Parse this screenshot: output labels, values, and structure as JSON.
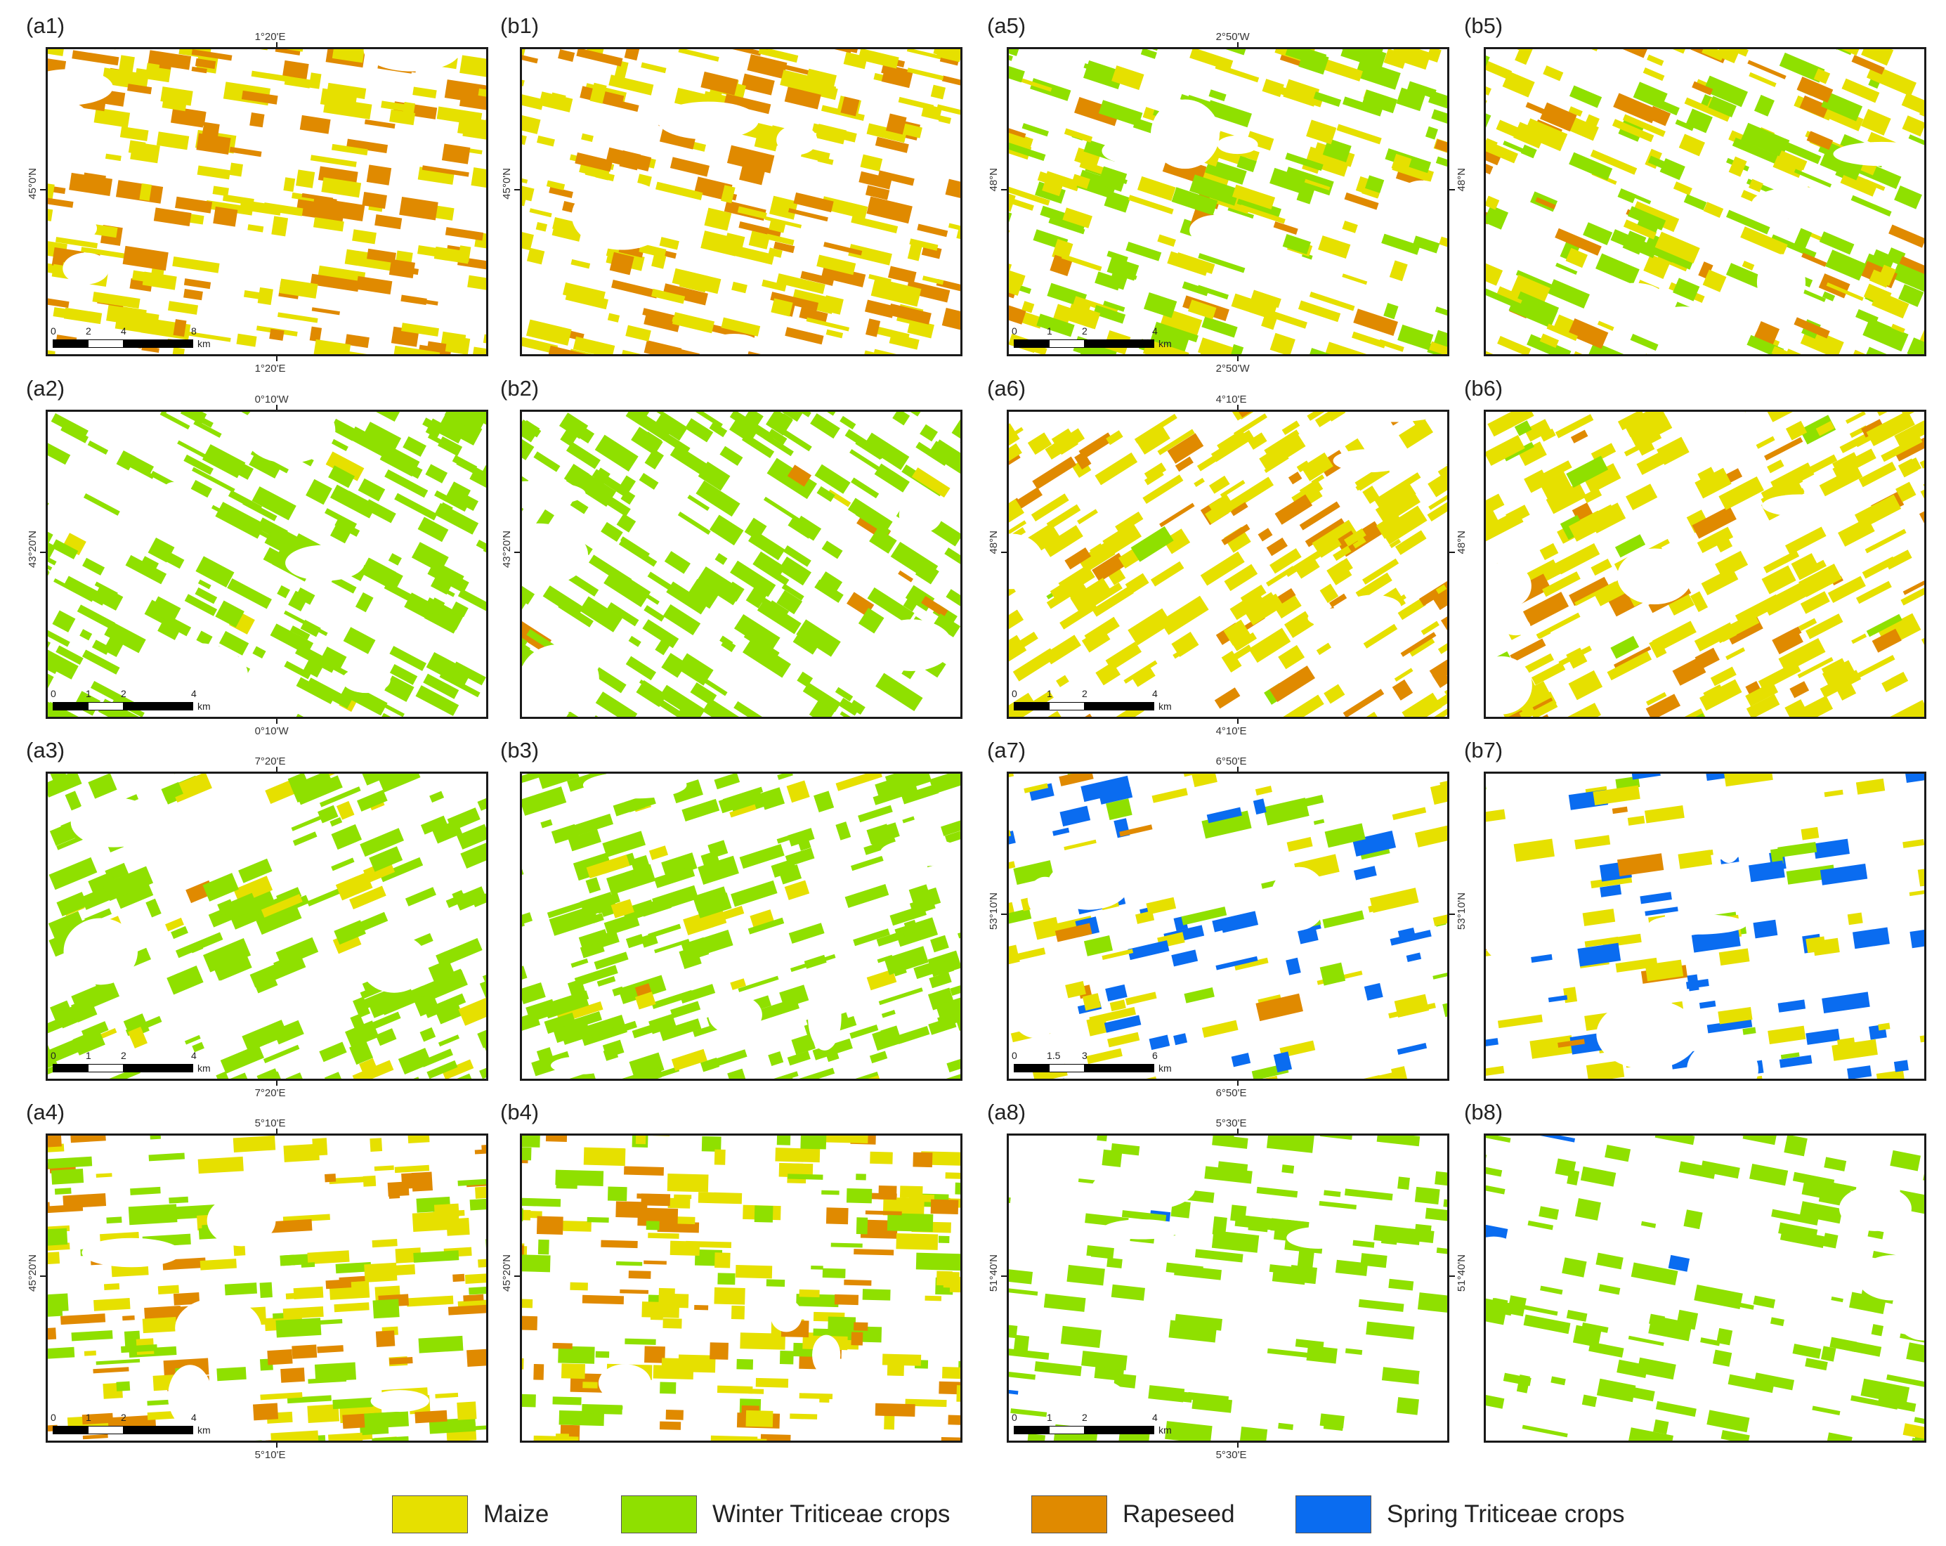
{
  "legend": {
    "items": [
      {
        "label": "Maize",
        "color": "#e6e000"
      },
      {
        "label": "Winter Triticeae crops",
        "color": "#8fe000"
      },
      {
        "label": "Rapeseed",
        "color": "#e08a00"
      },
      {
        "label": "Spring Triticeae crops",
        "color": "#0a6cf0"
      }
    ]
  },
  "panels": [
    {
      "id": "a1",
      "label": "(a1)",
      "top_coord": "1°20'E",
      "bottom_coord": "1°20'E",
      "left_coord": "45°0'N",
      "right_coord": "",
      "palette": [
        0.55,
        0,
        0.45,
        0
      ],
      "density": 0.78,
      "scale_labels": [
        "0",
        "2",
        "4",
        "8"
      ],
      "scale_unit": "km"
    },
    {
      "id": "b1",
      "label": "(b1)",
      "top_coord": "",
      "bottom_coord": "",
      "left_coord": "45°0'N",
      "right_coord": "",
      "palette": [
        0.62,
        0,
        0.38,
        0
      ],
      "density": 0.8
    },
    {
      "id": "a5",
      "label": "(a5)",
      "top_coord": "2°50'W",
      "bottom_coord": "2°50'W",
      "left_coord": "48°N",
      "right_coord": "48°N",
      "palette": [
        0.45,
        0.42,
        0.13,
        0
      ],
      "density": 0.74,
      "scale_labels": [
        "0",
        "1",
        "2",
        "4"
      ],
      "scale_unit": "km"
    },
    {
      "id": "b5",
      "label": "(b5)",
      "top_coord": "",
      "bottom_coord": "",
      "left_coord": "",
      "right_coord": "",
      "palette": [
        0.5,
        0.38,
        0.12,
        0
      ],
      "density": 0.74
    },
    {
      "id": "a2",
      "label": "(a2)",
      "top_coord": "0°10'W",
      "bottom_coord": "0°10'W",
      "left_coord": "43°20'N",
      "right_coord": "",
      "palette": [
        0.03,
        0.97,
        0,
        0
      ],
      "density": 0.68,
      "scale_labels": [
        "0",
        "1",
        "2",
        "4"
      ],
      "scale_unit": "km"
    },
    {
      "id": "b2",
      "label": "(b2)",
      "top_coord": "",
      "bottom_coord": "",
      "left_coord": "43°20'N",
      "right_coord": "",
      "palette": [
        0.02,
        0.96,
        0.02,
        0
      ],
      "density": 0.7
    },
    {
      "id": "a6",
      "label": "(a6)",
      "top_coord": "4°10'E",
      "bottom_coord": "4°10'E",
      "left_coord": "48°N",
      "right_coord": "48°N",
      "palette": [
        0.78,
        0.02,
        0.2,
        0
      ],
      "density": 0.72,
      "scale_labels": [
        "0",
        "1",
        "2",
        "4"
      ],
      "scale_unit": "km"
    },
    {
      "id": "b6",
      "label": "(b6)",
      "top_coord": "",
      "bottom_coord": "",
      "left_coord": "",
      "right_coord": "",
      "palette": [
        0.76,
        0.04,
        0.2,
        0
      ],
      "density": 0.75
    },
    {
      "id": "a3",
      "label": "(a3)",
      "top_coord": "7°20'E",
      "bottom_coord": "7°20'E",
      "left_coord": "",
      "right_coord": "",
      "palette": [
        0.12,
        0.86,
        0.02,
        0
      ],
      "density": 0.66,
      "scale_labels": [
        "0",
        "1",
        "2",
        "4"
      ],
      "scale_unit": "km"
    },
    {
      "id": "b3",
      "label": "(b3)",
      "top_coord": "",
      "bottom_coord": "",
      "left_coord": "",
      "right_coord": "",
      "palette": [
        0.1,
        0.87,
        0.03,
        0
      ],
      "density": 0.68
    },
    {
      "id": "a7",
      "label": "(a7)",
      "top_coord": "6°50'E",
      "bottom_coord": "6°50'E",
      "left_coord": "53°10'N",
      "right_coord": "53°10'N",
      "palette": [
        0.45,
        0.15,
        0.05,
        0.35
      ],
      "density": 0.42,
      "scale_labels": [
        "0",
        "1.5",
        "3",
        "6"
      ],
      "scale_unit": "km"
    },
    {
      "id": "b7",
      "label": "(b7)",
      "top_coord": "",
      "bottom_coord": "",
      "left_coord": "",
      "right_coord": "",
      "palette": [
        0.48,
        0.15,
        0.04,
        0.33
      ],
      "density": 0.4
    },
    {
      "id": "a4",
      "label": "(a4)",
      "top_coord": "5°10'E",
      "bottom_coord": "5°10'E",
      "left_coord": "45°20'N",
      "right_coord": "",
      "palette": [
        0.45,
        0.3,
        0.25,
        0
      ],
      "density": 0.66,
      "scale_labels": [
        "0",
        "1",
        "2",
        "4"
      ],
      "scale_unit": "km"
    },
    {
      "id": "b4",
      "label": "(b4)",
      "top_coord": "",
      "bottom_coord": "",
      "left_coord": "45°20'N",
      "right_coord": "",
      "palette": [
        0.45,
        0.3,
        0.25,
        0
      ],
      "density": 0.68
    },
    {
      "id": "a8",
      "label": "(a8)",
      "top_coord": "5°30'E",
      "bottom_coord": "5°30'E",
      "left_coord": "51°40'N",
      "right_coord": "51°40'N",
      "palette": [
        0.02,
        0.95,
        0,
        0.03
      ],
      "density": 0.4,
      "scale_labels": [
        "0",
        "1",
        "2",
        "4"
      ],
      "scale_unit": "km"
    },
    {
      "id": "b8",
      "label": "(b8)",
      "top_coord": "",
      "bottom_coord": "",
      "left_coord": "",
      "right_coord": "",
      "palette": [
        0.02,
        0.95,
        0,
        0.03
      ],
      "density": 0.38
    }
  ]
}
